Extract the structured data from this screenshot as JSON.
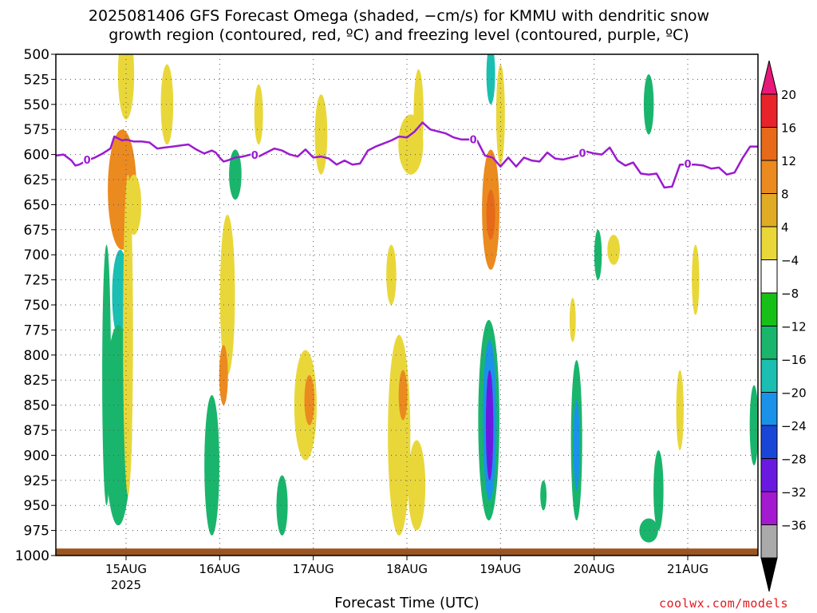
{
  "chart_data": {
    "type": "heatmap",
    "title": "2025081406 GFS Forecast Omega (shaded, −cm/s) for KMMU with dendritic snow\ngrowth region (contoured, red, ºC) and freezing level (contoured, purple, ºC)",
    "xlabel": "Forecast Time (UTC)",
    "ylabel": "",
    "credit": "coolwx.com/models",
    "y_axis": {
      "ticks": [
        "500",
        "525",
        "550",
        "575",
        "600",
        "625",
        "650",
        "675",
        "700",
        "725",
        "750",
        "775",
        "800",
        "825",
        "850",
        "875",
        "900",
        "925",
        "950",
        "975",
        "1000"
      ],
      "range": [
        1000,
        500
      ],
      "grid": true
    },
    "x_axis": {
      "ticks": [
        {
          "label": "15AUG",
          "sublabel": "2025",
          "hour": 18
        },
        {
          "label": "16AUG",
          "sublabel": "",
          "hour": 42
        },
        {
          "label": "17AUG",
          "sublabel": "",
          "hour": 66
        },
        {
          "label": "18AUG",
          "sublabel": "",
          "hour": 90
        },
        {
          "label": "19AUG",
          "sublabel": "",
          "hour": 114
        },
        {
          "label": "20AUG",
          "sublabel": "",
          "hour": 138
        },
        {
          "label": "21AUG",
          "sublabel": "",
          "hour": 162
        }
      ],
      "range": [
        0,
        180
      ],
      "grid": true
    },
    "colorbar": {
      "labels": [
        "20",
        "16",
        "12",
        "8",
        "4",
        "−4",
        "−8",
        "−12",
        "−16",
        "−20",
        "−24",
        "−28",
        "−32",
        "−36"
      ],
      "colors": [
        "#e8177a",
        "#e8232a",
        "#e66a1a",
        "#eb8a1f",
        "#e1ab25",
        "#e9d73a",
        "#ffffff",
        "#17c017",
        "#1ab56c",
        "#1abfb1",
        "#1a92e9",
        "#1a46d8",
        "#6a1ae0",
        "#a31ad0",
        "#aaaaaa",
        "#000000"
      ]
    },
    "freezing_level": {
      "color": "#9b1bd0",
      "label": "0",
      "label_hours": [
        8,
        51,
        107,
        135,
        162
      ],
      "hours": [
        0,
        2,
        4,
        5,
        6,
        8,
        10,
        12,
        14,
        15,
        16,
        17,
        18,
        20,
        22,
        24,
        26,
        28,
        30,
        32,
        34,
        36,
        38,
        40,
        41,
        42,
        43,
        44,
        46,
        48,
        50,
        52,
        54,
        56,
        58,
        60,
        62,
        64,
        66,
        68,
        70,
        72,
        74,
        76,
        78,
        80,
        82,
        84,
        86,
        88,
        90,
        92,
        94,
        96,
        98,
        100,
        102,
        104,
        106,
        108,
        110,
        112,
        114,
        116,
        118,
        120,
        122,
        124,
        126,
        128,
        130,
        132,
        134,
        136,
        138,
        140,
        142,
        144,
        146,
        148,
        150,
        152,
        154,
        156,
        158,
        160,
        162,
        164,
        166,
        168,
        170,
        172,
        174,
        176,
        178,
        180
      ],
      "pressure": [
        601,
        600,
        606,
        611,
        610,
        606,
        603,
        599,
        594,
        582,
        584,
        586,
        585,
        587,
        587,
        588,
        594,
        593,
        592,
        591,
        590,
        595,
        599,
        596,
        598,
        603,
        607,
        606,
        603,
        602,
        600,
        602,
        598,
        594,
        596,
        600,
        602,
        595,
        603,
        602,
        604,
        610,
        606,
        610,
        609,
        596,
        592,
        589,
        586,
        582,
        583,
        577,
        568,
        575,
        577,
        579,
        583,
        585,
        585,
        586,
        601,
        603,
        612,
        603,
        612,
        603,
        606,
        607,
        598,
        604,
        605,
        603,
        601,
        597,
        599,
        600,
        593,
        606,
        611,
        608,
        619,
        620,
        619,
        633,
        632,
        610,
        610,
        610,
        611,
        614,
        613,
        620,
        618,
        604,
        592,
        592,
        592
      ],
      "units": "hPa"
    },
    "omega_regions": [
      {
        "h": 17.5,
        "p": 650,
        "sh": 1.5,
        "sp": 22,
        "v": 14
      },
      {
        "h": 17.0,
        "p": 635,
        "sh": 2.3,
        "sp": 60,
        "v": 8
      },
      {
        "h": 20.0,
        "p": 650,
        "sh": 1.2,
        "sp": 30,
        "v": 6
      },
      {
        "h": 18.0,
        "p": 520,
        "sh": 1.3,
        "sp": 45,
        "v": 6
      },
      {
        "h": 28.5,
        "p": 550,
        "sh": 1.0,
        "sp": 40,
        "v": 6
      },
      {
        "h": 16.5,
        "p": 740,
        "sh": 1.3,
        "sp": 45,
        "v": -12
      },
      {
        "h": 16.0,
        "p": 870,
        "sh": 2.2,
        "sp": 100,
        "v": -8
      },
      {
        "h": 13.0,
        "p": 820,
        "sh": 0.7,
        "sp": 130,
        "v": -8
      },
      {
        "h": 18.5,
        "p": 780,
        "sh": 0.8,
        "sp": 160,
        "v": 6
      },
      {
        "h": 44.0,
        "p": 740,
        "sh": 1.2,
        "sp": 80,
        "v": 6
      },
      {
        "h": 43.0,
        "p": 820,
        "sh": 0.7,
        "sp": 30,
        "v": 10
      },
      {
        "h": 40.0,
        "p": 910,
        "sh": 1.2,
        "sp": 70,
        "v": -8
      },
      {
        "h": 46.0,
        "p": 620,
        "sh": 1.0,
        "sp": 25,
        "v": -8
      },
      {
        "h": 52.0,
        "p": 560,
        "sh": 0.7,
        "sp": 30,
        "v": 6
      },
      {
        "h": 58.0,
        "p": 950,
        "sh": 0.9,
        "sp": 30,
        "v": -8
      },
      {
        "h": 64.0,
        "p": 850,
        "sh": 1.8,
        "sp": 55,
        "v": 6
      },
      {
        "h": 65.0,
        "p": 845,
        "sh": 0.8,
        "sp": 25,
        "v": 10
      },
      {
        "h": 68.0,
        "p": 580,
        "sh": 1.0,
        "sp": 40,
        "v": 6
      },
      {
        "h": 86.0,
        "p": 720,
        "sh": 0.8,
        "sp": 30,
        "v": 6
      },
      {
        "h": 88.0,
        "p": 880,
        "sh": 1.8,
        "sp": 100,
        "v": 6
      },
      {
        "h": 89.0,
        "p": 840,
        "sh": 0.7,
        "sp": 25,
        "v": 10
      },
      {
        "h": 91.0,
        "p": 590,
        "sh": 2.0,
        "sp": 30,
        "v": 6
      },
      {
        "h": 93.0,
        "p": 560,
        "sh": 0.8,
        "sp": 45,
        "v": 6
      },
      {
        "h": 92.5,
        "p": 930,
        "sh": 1.4,
        "sp": 45,
        "v": 6
      },
      {
        "h": 111.5,
        "p": 655,
        "sh": 1.4,
        "sp": 60,
        "v": 8
      },
      {
        "h": 111.5,
        "p": 660,
        "sh": 0.7,
        "sp": 25,
        "v": 12
      },
      {
        "h": 111.0,
        "p": 865,
        "sh": 1.7,
        "sp": 100,
        "v": -8
      },
      {
        "h": 111.2,
        "p": 865,
        "sh": 1.1,
        "sp": 80,
        "v": -16
      },
      {
        "h": 111.2,
        "p": 870,
        "sh": 0.6,
        "sp": 55,
        "v": -24
      },
      {
        "h": 111.5,
        "p": 520,
        "sh": 0.7,
        "sp": 30,
        "v": -12
      },
      {
        "h": 114.0,
        "p": 560,
        "sh": 0.7,
        "sp": 50,
        "v": 6
      },
      {
        "h": 133.5,
        "p": 885,
        "sh": 0.9,
        "sp": 80,
        "v": -8
      },
      {
        "h": 133.5,
        "p": 890,
        "sh": 0.5,
        "sp": 45,
        "v": -16
      },
      {
        "h": 125.0,
        "p": 940,
        "sh": 0.5,
        "sp": 15,
        "v": -8
      },
      {
        "h": 132.5,
        "p": 765,
        "sh": 0.5,
        "sp": 22,
        "v": 6
      },
      {
        "h": 139.0,
        "p": 700,
        "sh": 0.6,
        "sp": 25,
        "v": -8
      },
      {
        "h": 143.0,
        "p": 695,
        "sh": 1.0,
        "sp": 15,
        "v": 6
      },
      {
        "h": 152.0,
        "p": 550,
        "sh": 0.8,
        "sp": 30,
        "v": -8
      },
      {
        "h": 154.5,
        "p": 935,
        "sh": 0.8,
        "sp": 40,
        "v": -8
      },
      {
        "h": 152.0,
        "p": 975,
        "sh": 1.5,
        "sp": 12,
        "v": -8
      },
      {
        "h": 160.0,
        "p": 855,
        "sh": 0.6,
        "sp": 40,
        "v": 6
      },
      {
        "h": 164.0,
        "p": 725,
        "sh": 0.6,
        "sp": 35,
        "v": 6
      },
      {
        "h": 179.0,
        "p": 870,
        "sh": 0.7,
        "sp": 40,
        "v": -8
      }
    ],
    "ground": {
      "color": "#9b5522",
      "top_pressure": 993
    }
  }
}
